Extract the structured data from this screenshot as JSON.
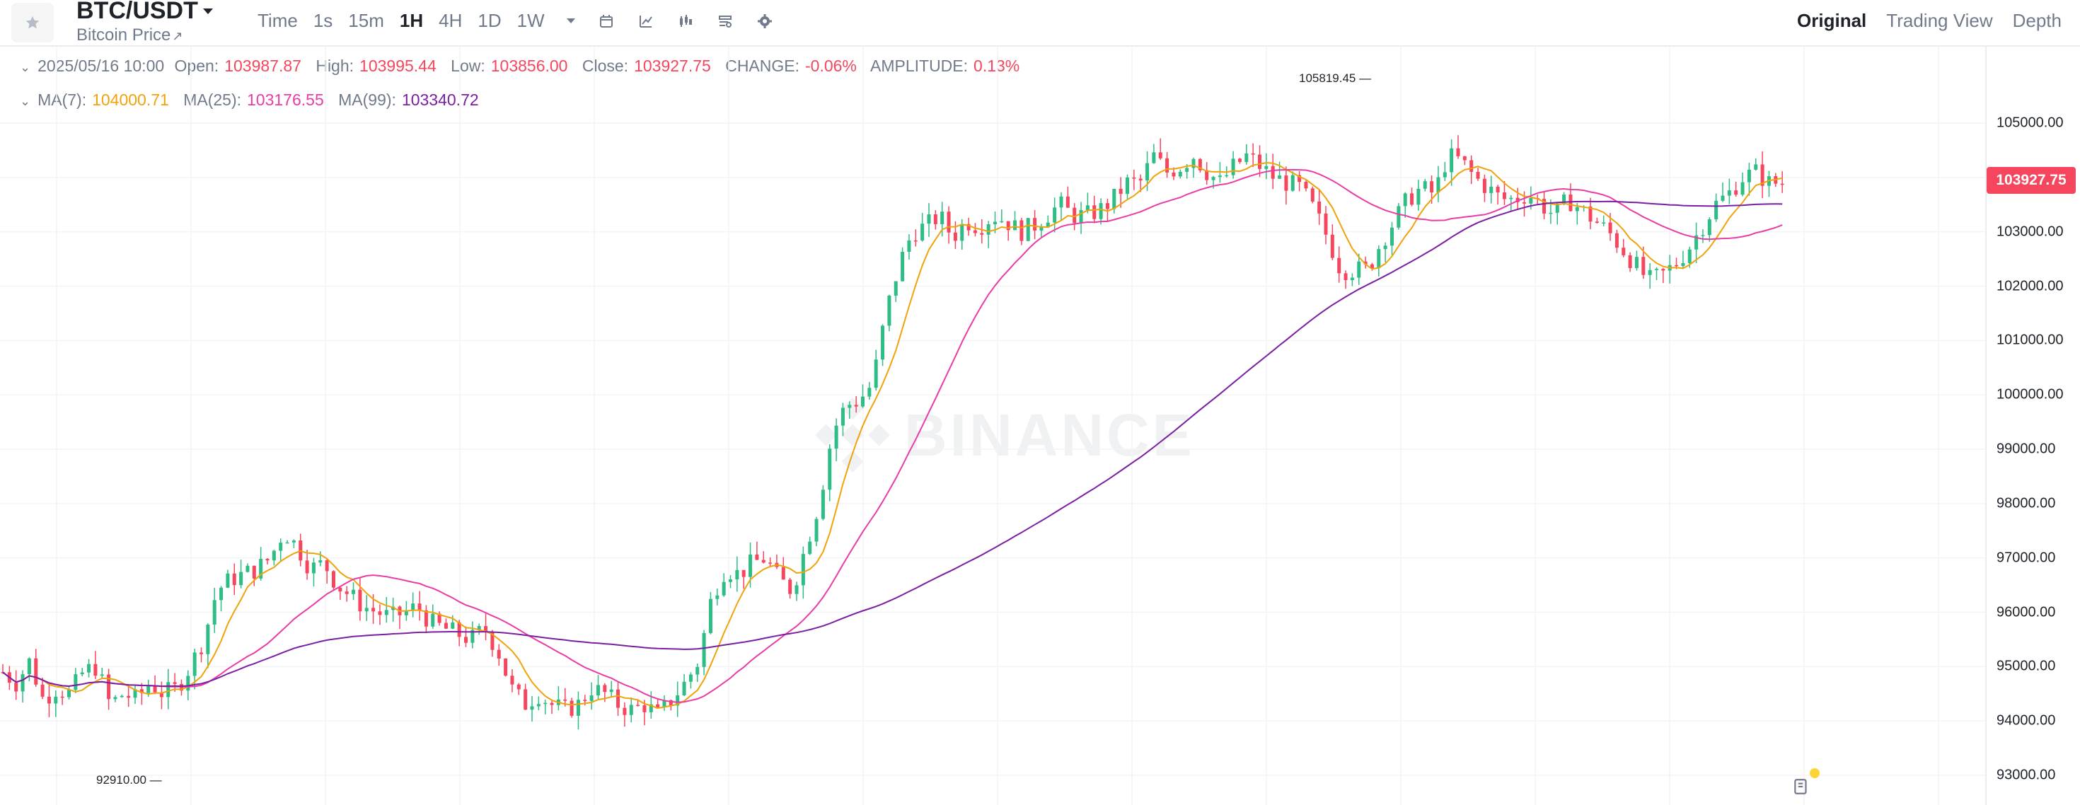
{
  "header": {
    "pair": "BTC/USDT",
    "subtitle": "Bitcoin Price",
    "subtitle_arrow": "↗",
    "intervals": [
      "Time",
      "1s",
      "15m",
      "1H",
      "4H",
      "1D",
      "1W"
    ],
    "active_interval": "1H",
    "view_tabs": [
      "Original",
      "Trading View",
      "Depth"
    ],
    "active_view": "Original"
  },
  "ohlc": {
    "datetime": "2025/05/16 10:00",
    "open_label": "Open:",
    "open": "103987.87",
    "high_label": "High:",
    "high": "103995.44",
    "low_label": "Low:",
    "low": "103856.00",
    "close_label": "Close:",
    "close": "103927.75",
    "change_label": "CHANGE:",
    "change": "-0.06%",
    "amplitude_label": "AMPLITUDE:",
    "amplitude": "0.13%"
  },
  "ma": {
    "ma7_label": "MA(7):",
    "ma7": "104000.71",
    "ma25_label": "MA(25):",
    "ma25": "103176.55",
    "ma99_label": "MA(99):",
    "ma99": "103340.72"
  },
  "watermark": "BINANCE",
  "annotations": {
    "high": "105819.45",
    "low": "92910.00"
  },
  "last_price": "103927.75",
  "colors": {
    "up": "#2ebd85",
    "down": "#f6465d",
    "ma7": "#f0a30a",
    "ma25": "#e93ca6",
    "ma99": "#7b1fa2"
  },
  "chart_data": {
    "type": "candlestick",
    "price_ticks": [
      "105000.00",
      "104000.00",
      "103000.00",
      "102000.00",
      "101000.00",
      "100000.00",
      "99000.00",
      "98000.00",
      "97000.00",
      "96000.00",
      "95000.00",
      "94000.00",
      "93000.00"
    ],
    "ylim": [
      92500,
      106500
    ],
    "close_path": [
      94900,
      94700,
      95100,
      94400,
      94600,
      94500,
      94900,
      95000,
      94300,
      94500,
      94400,
      94700,
      94500,
      94600,
      95000,
      95500,
      96400,
      96600,
      96700,
      96800,
      97000,
      97500,
      97200,
      96800,
      96900,
      96500,
      96300,
      96100,
      96000,
      95900,
      96000,
      96100,
      95800,
      95700,
      95600,
      95500,
      95700,
      95300,
      94600,
      94300,
      94500,
      94300,
      94200,
      94300,
      94600,
      94500,
      94300,
      94200,
      94300,
      94100,
      94400,
      94700,
      95100,
      96300,
      96800,
      96700,
      96900,
      97000,
      96600,
      96400,
      97200,
      98000,
      99300,
      99800,
      99900,
      100200,
      101500,
      102400,
      103000,
      103100,
      103300,
      102900,
      103200,
      103100,
      103300,
      103200,
      103000,
      103100,
      103300,
      103500,
      103300,
      103300,
      103400,
      103600,
      103900,
      103900,
      104400,
      104100,
      104200,
      104400,
      104100,
      103900,
      104200,
      104400,
      104200,
      104000,
      103900,
      103800,
      103400,
      102900,
      102300,
      102300,
      102300,
      102800,
      103200,
      103600,
      103800,
      103700,
      104400,
      104300,
      104000,
      103800,
      103600,
      103600,
      103700,
      103500,
      103300,
      103600,
      103400,
      103200,
      103000,
      102700,
      102400,
      102100,
      102200,
      102400,
      102700,
      103100,
      103500,
      103700,
      104000,
      104100,
      103900,
      103900
    ]
  }
}
